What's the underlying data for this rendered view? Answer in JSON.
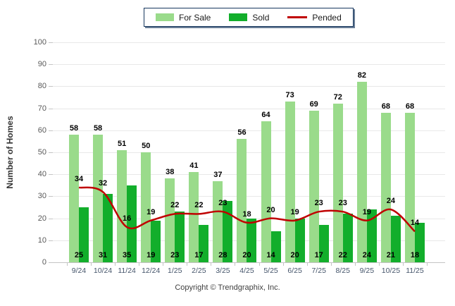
{
  "legend": {
    "for_sale": "For Sale",
    "sold": "Sold",
    "pended": "Pended"
  },
  "footer": {
    "copyright": "Copyright © Trendgraphix, Inc."
  },
  "colors": {
    "for_sale": "#9adb8b",
    "sold": "#12ae2b",
    "pended": "#c00000",
    "legend_border": "#17375e",
    "gridline": "#e8e8e8",
    "x_label": "#44546a",
    "y_label": "#595959"
  },
  "chart_data": {
    "type": "bar",
    "title": "",
    "xlabel": "",
    "ylabel": "Number of Homes",
    "ylim": [
      0,
      100
    ],
    "y_tick_step": 10,
    "y_ticks": [
      0,
      10,
      20,
      30,
      40,
      50,
      60,
      70,
      80,
      90,
      100
    ],
    "grid": true,
    "legend_position": "top",
    "categories": [
      "9/24",
      "10/24",
      "11/24",
      "12/24",
      "1/25",
      "2/25",
      "3/25",
      "4/25",
      "5/25",
      "6/25",
      "7/25",
      "8/25",
      "9/25",
      "10/25",
      "11/25"
    ],
    "series": [
      {
        "name": "For Sale",
        "type": "bar",
        "color": "#9adb8b",
        "values": [
          58,
          58,
          51,
          50,
          38,
          41,
          37,
          56,
          64,
          73,
          69,
          72,
          82,
          68,
          68
        ]
      },
      {
        "name": "Sold",
        "type": "bar",
        "color": "#12ae2b",
        "values": [
          25,
          31,
          35,
          19,
          23,
          17,
          28,
          20,
          14,
          20,
          17,
          22,
          24,
          21,
          18
        ]
      },
      {
        "name": "Pended",
        "type": "line",
        "color": "#c00000",
        "values": [
          34,
          32,
          16,
          19,
          22,
          22,
          23,
          18,
          20,
          19,
          23,
          23,
          19,
          24,
          14
        ]
      }
    ]
  }
}
